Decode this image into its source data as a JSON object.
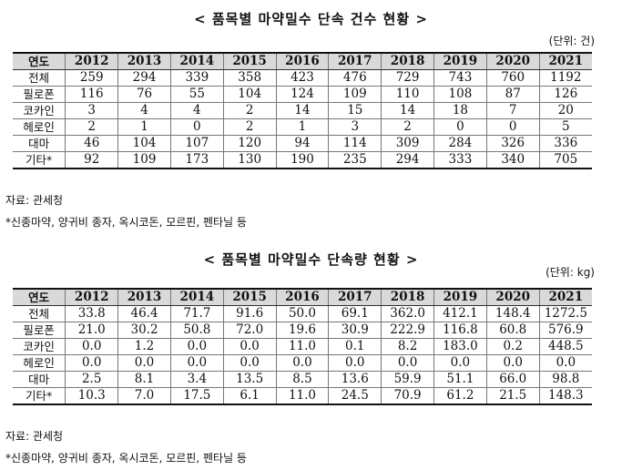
{
  "tables": [
    {
      "title": "< 품목별 마약밀수 단속 건수 현황 >",
      "unit": "(단위: 건)",
      "corner_label": "연도",
      "years": [
        "2012",
        "2013",
        "2014",
        "2015",
        "2016",
        "2017",
        "2018",
        "2019",
        "2020",
        "2021"
      ],
      "rows": [
        {
          "label": "전체",
          "values": [
            "259",
            "294",
            "339",
            "358",
            "423",
            "476",
            "729",
            "743",
            "760",
            "1192"
          ]
        },
        {
          "label": "필로폰",
          "values": [
            "116",
            "76",
            "55",
            "104",
            "124",
            "109",
            "110",
            "108",
            "87",
            "126"
          ]
        },
        {
          "label": "코카인",
          "values": [
            "3",
            "4",
            "4",
            "2",
            "14",
            "15",
            "14",
            "18",
            "7",
            "20"
          ]
        },
        {
          "label": "헤로인",
          "values": [
            "2",
            "1",
            "0",
            "2",
            "1",
            "3",
            "2",
            "0",
            "0",
            "5"
          ]
        },
        {
          "label": "대마",
          "values": [
            "46",
            "104",
            "107",
            "120",
            "94",
            "114",
            "309",
            "284",
            "326",
            "336"
          ]
        },
        {
          "label": "기타*",
          "values": [
            "92",
            "109",
            "173",
            "130",
            "190",
            "235",
            "294",
            "333",
            "340",
            "705"
          ]
        }
      ],
      "source": "자료: 관세청",
      "footnote": "*신종마약, 양귀비 종자, 옥시코돈, 모르핀, 펜타닐 등"
    },
    {
      "title": "< 품목별 마약밀수 단속량 현황 >",
      "unit": "(단위: kg)",
      "corner_label": "연도",
      "years": [
        "2012",
        "2013",
        "2014",
        "2015",
        "2016",
        "2017",
        "2018",
        "2019",
        "2020",
        "2021"
      ],
      "rows": [
        {
          "label": "전체",
          "values": [
            "33.8",
            "46.4",
            "71.7",
            "91.6",
            "50.0",
            "69.1",
            "362.0",
            "412.1",
            "148.4",
            "1272.5"
          ]
        },
        {
          "label": "필로폰",
          "values": [
            "21.0",
            "30.2",
            "50.8",
            "72.0",
            "19.6",
            "30.9",
            "222.9",
            "116.8",
            "60.8",
            "576.9"
          ]
        },
        {
          "label": "코카인",
          "values": [
            "0.0",
            "1.2",
            "0.0",
            "0.0",
            "11.0",
            "0.1",
            "8.2",
            "183.0",
            "0.2",
            "448.5"
          ]
        },
        {
          "label": "헤로인",
          "values": [
            "0.0",
            "0.0",
            "0.0",
            "0.0",
            "0.0",
            "0.0",
            "0.0",
            "0.0",
            "0.0",
            "0.0"
          ]
        },
        {
          "label": "대마",
          "values": [
            "2.5",
            "8.1",
            "3.4",
            "13.5",
            "8.5",
            "13.6",
            "59.9",
            "51.1",
            "66.0",
            "98.8"
          ]
        },
        {
          "label": "기타*",
          "values": [
            "10.3",
            "7.0",
            "17.5",
            "6.1",
            "11.0",
            "24.5",
            "70.9",
            "61.2",
            "21.5",
            "148.3"
          ]
        }
      ],
      "source": "자료: 관세청",
      "footnote": "*신종마약, 양귀비 종자, 옥시코돈, 모르핀, 펜타닐 등"
    }
  ]
}
